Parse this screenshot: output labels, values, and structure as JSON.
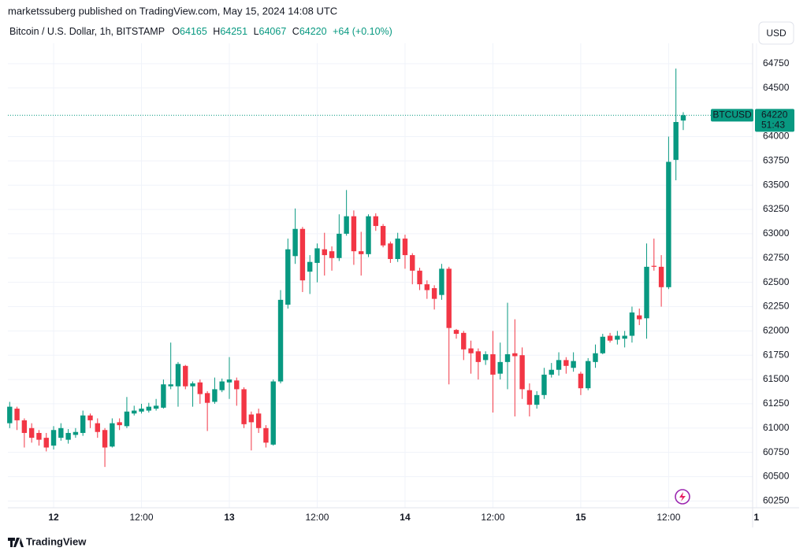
{
  "header": {
    "publisher": "marketssuberg published on TradingView.com, May 15, 2024 14:08 UTC",
    "ohlc_labels": [
      "O",
      "H",
      "L",
      "C"
    ],
    "change": "+64 (+0.10%)"
  },
  "currency_button": "USD",
  "price_label": "BTCUSD",
  "countdown": "51:43",
  "brand": "TradingView",
  "chart_data": {
    "type": "candlestick",
    "title": "Bitcoin / U.S. Dollar, 1h, BITSTAMP",
    "up_color": "#089981",
    "down_color": "#f23645",
    "grid": true,
    "ylim": [
      60180,
      64960
    ],
    "yticks": [
      60250,
      60500,
      60750,
      61000,
      61250,
      61500,
      61750,
      62000,
      62250,
      62500,
      62750,
      63000,
      63250,
      63500,
      63750,
      64000,
      64500,
      64750
    ],
    "categories": [
      null,
      null,
      null,
      null,
      null,
      null,
      "12",
      null,
      null,
      null,
      null,
      null,
      null,
      null,
      null,
      null,
      null,
      null,
      "12:00",
      null,
      null,
      null,
      null,
      null,
      null,
      null,
      null,
      null,
      null,
      null,
      "13",
      null,
      null,
      null,
      null,
      null,
      null,
      null,
      null,
      null,
      null,
      null,
      "12:00",
      null,
      null,
      null,
      null,
      null,
      null,
      null,
      null,
      null,
      null,
      null,
      "14",
      null,
      null,
      null,
      null,
      null,
      null,
      null,
      null,
      null,
      null,
      null,
      "12:00",
      null,
      null,
      null,
      null,
      null,
      null,
      null,
      null,
      null,
      null,
      null,
      "15",
      null,
      null,
      null,
      null,
      null,
      null,
      null,
      null,
      null,
      null,
      null,
      "12:00",
      null,
      null,
      null,
      null,
      null,
      null,
      null,
      null,
      null,
      null,
      null,
      "1"
    ],
    "open": [
      61050,
      61200,
      61080,
      61000,
      60950,
      60900,
      60820,
      60900,
      60880,
      60930,
      60950,
      61130,
      61050,
      60980,
      60810,
      61060,
      61020,
      61150,
      61170,
      61180,
      61200,
      61210,
      61430,
      61430,
      61640,
      61430,
      61470,
      61360,
      61270,
      61390,
      61470,
      61490,
      61400,
      61140,
      61150,
      61000,
      60830,
      61480,
      62270,
      62770,
      63050,
      62610,
      62700,
      62840,
      62820,
      62750,
      63000,
      63180,
      62820,
      62790,
      63180,
      63080,
      62900,
      62740,
      62950,
      62780,
      62620,
      62480,
      62440,
      62370,
      62640,
      62010,
      61980,
      61820,
      61790,
      61700,
      61760,
      61560,
      61680,
      61770,
      61750,
      61390,
      61240,
      61340,
      61550,
      61600,
      61700,
      61620,
      61560,
      61410,
      61680,
      61770,
      61950,
      61910,
      61920,
      61950,
      62160,
      62130,
      62670,
      62660,
      62450,
      63760,
      64165,
      null,
      null,
      null,
      null,
      null,
      null,
      null,
      null,
      null,
      null
    ],
    "high": [
      61270,
      61220,
      61100,
      61050,
      60980,
      60950,
      61020,
      61050,
      60990,
      61000,
      61180,
      61150,
      61100,
      61000,
      61100,
      61100,
      61320,
      61230,
      61250,
      61260,
      61300,
      61500,
      61880,
      61680,
      61650,
      61480,
      61500,
      61380,
      61520,
      61510,
      61730,
      61520,
      61420,
      61170,
      61200,
      61030,
      61500,
      62420,
      62950,
      63260,
      63070,
      62780,
      62900,
      63010,
      62870,
      63200,
      63450,
      63240,
      63020,
      63200,
      63210,
      63100,
      62920,
      63010,
      62990,
      62800,
      62650,
      62520,
      62470,
      62690,
      62660,
      62020,
      62000,
      61900,
      61820,
      61790,
      62000,
      61880,
      62290,
      62120,
      61830,
      61460,
      61380,
      61620,
      61670,
      61780,
      61730,
      61780,
      61580,
      61720,
      61860,
      61970,
      61980,
      62000,
      62000,
      62250,
      62230,
      62900,
      62950,
      62780,
      64000,
      64700,
      64251,
      null,
      null,
      null,
      null,
      null,
      null,
      null,
      null,
      null,
      null
    ],
    "low": [
      61000,
      60980,
      60800,
      60850,
      60820,
      60760,
      60780,
      60870,
      60840,
      60900,
      60920,
      61000,
      60900,
      60600,
      60800,
      60980,
      61000,
      61130,
      61150,
      61160,
      61180,
      61200,
      61400,
      61220,
      61400,
      61220,
      61250,
      60970,
      61250,
      61370,
      61300,
      61230,
      61000,
      60770,
      60950,
      60800,
      60820,
      61460,
      62230,
      62690,
      62400,
      62380,
      62500,
      62570,
      62620,
      62720,
      62980,
      62680,
      62570,
      62760,
      63030,
      62860,
      62700,
      62710,
      62640,
      62480,
      62420,
      62330,
      62220,
      62320,
      61450,
      61920,
      61700,
      61560,
      61500,
      61650,
      61160,
      61500,
      61400,
      61120,
      61300,
      61120,
      61200,
      61300,
      61520,
      61540,
      61560,
      61580,
      61340,
      61390,
      61620,
      61760,
      61880,
      61860,
      61830,
      61880,
      62060,
      61920,
      62620,
      62250,
      62430,
      63550,
      64067,
      null,
      null,
      null,
      null,
      null,
      null,
      null,
      null,
      null,
      null
    ],
    "close": [
      61220,
      61080,
      60950,
      60900,
      60880,
      60800,
      60980,
      61000,
      60950,
      60960,
      61130,
      61080,
      60960,
      60800,
      61050,
      61030,
      61170,
      61180,
      61200,
      61220,
      61230,
      61450,
      61450,
      61660,
      61430,
      61460,
      61350,
      61260,
      61400,
      61480,
      61500,
      61400,
      61040,
      61060,
      61000,
      60850,
      61480,
      62320,
      62840,
      63050,
      62520,
      62710,
      62850,
      62780,
      62750,
      63000,
      63180,
      62820,
      62790,
      63180,
      63080,
      62880,
      62740,
      62950,
      62780,
      62620,
      62480,
      62420,
      62330,
      62640,
      62030,
      61970,
      61810,
      61770,
      61680,
      61760,
      61550,
      61680,
      61760,
      61740,
      61400,
      61240,
      61340,
      61550,
      61600,
      61700,
      61640,
      61690,
      61410,
      61690,
      61770,
      61940,
      61900,
      61950,
      61950,
      62190,
      62120,
      62660,
      62660,
      62450,
      63740,
      64150,
      64220,
      null,
      null,
      null,
      null,
      null,
      null,
      null,
      null,
      null,
      null
    ]
  }
}
